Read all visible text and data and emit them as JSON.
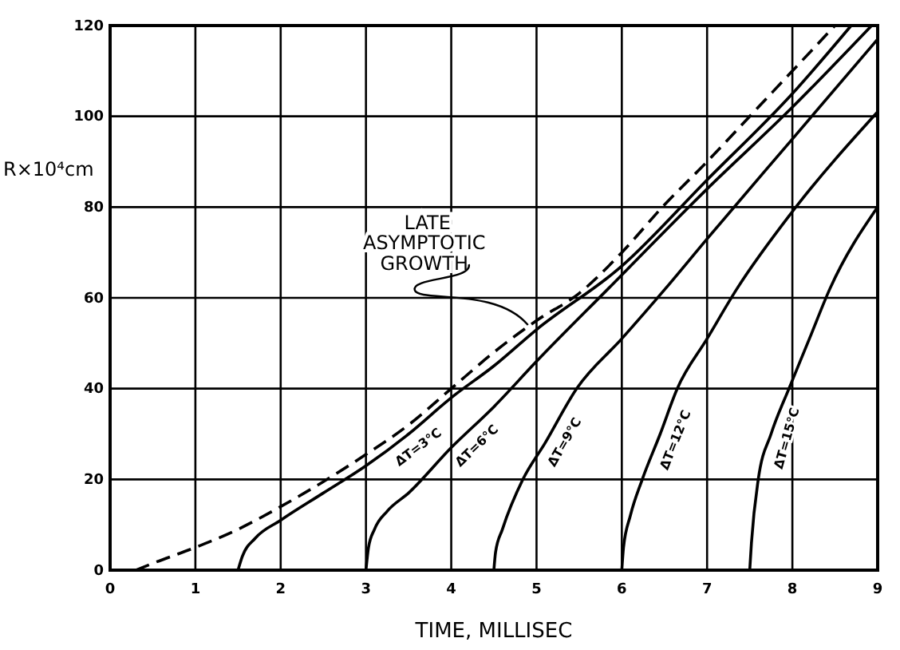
{
  "chart_data": {
    "type": "line",
    "xlabel": "TIME, MILLISEC",
    "ylabel": "R×10⁴cm",
    "xlim": [
      0,
      9
    ],
    "ylim": [
      0,
      120
    ],
    "xticks": [
      0,
      1,
      2,
      3,
      4,
      5,
      6,
      7,
      8,
      9
    ],
    "yticks": [
      0,
      20,
      40,
      60,
      80,
      100,
      120
    ],
    "grid": true,
    "legend": false,
    "marker": "none",
    "annotations": [
      {
        "text": "LATE ASYMPTOTIC GROWTH",
        "x": 4.9,
        "y": 54
      }
    ],
    "series": [
      {
        "color": "#000000",
        "line_style": "dashed",
        "x": [
          0.3,
          0.5,
          1,
          1.5,
          2,
          2.5,
          3,
          3.5,
          4,
          4.5,
          5,
          5.5,
          6,
          6.5,
          7,
          7.5,
          8,
          8.5
        ],
        "values": [
          0,
          1.5,
          5,
          9,
          14,
          19.5,
          25.5,
          32,
          40,
          48,
          55,
          61,
          70,
          80.5,
          90,
          100,
          110,
          120
        ]
      },
      {
        "name": "ΔT=3°C",
        "color": "#000000",
        "line_style": "solid",
        "x": [
          1.5,
          1.55,
          1.7,
          2,
          2.5,
          3,
          3.5,
          4,
          4.5,
          5,
          6,
          7,
          8,
          8.69
        ],
        "values": [
          0,
          3,
          7,
          11,
          17,
          23,
          30,
          38,
          45,
          53,
          67,
          86,
          105,
          120
        ]
      },
      {
        "name": "ΔT=6°C",
        "color": "#000000",
        "line_style": "solid",
        "x": [
          3,
          3.03,
          3.1,
          3.25,
          3.5,
          4,
          4.5,
          5,
          5.84,
          7,
          8,
          8.93
        ],
        "values": [
          0,
          5,
          9,
          13,
          17,
          27,
          36,
          46,
          62,
          84,
          102,
          120
        ]
      },
      {
        "name": "ΔT=9°C",
        "color": "#000000",
        "line_style": "solid",
        "x": [
          4.5,
          4.52,
          4.6,
          4.84,
          5.1,
          5.47,
          6,
          6.51,
          7,
          8,
          9
        ],
        "values": [
          0,
          4,
          9,
          20,
          28,
          40,
          51,
          62,
          73,
          95,
          117
        ]
      },
      {
        "name": "ΔT=12°C",
        "color": "#000000",
        "line_style": "solid",
        "x": [
          6,
          6.02,
          6.1,
          6.24,
          6.45,
          6.65,
          7,
          7.35,
          8,
          9
        ],
        "values": [
          0,
          5,
          12,
          20,
          30,
          40,
          51,
          62,
          79,
          101
        ]
      },
      {
        "name": "ΔT=15°C",
        "color": "#000000",
        "line_style": "solid",
        "x": [
          7.5,
          7.52,
          7.6,
          7.75,
          7.96,
          8.2,
          8.44,
          9
        ],
        "values": [
          0,
          6,
          20,
          30,
          40,
          51,
          62,
          80
        ]
      }
    ]
  }
}
